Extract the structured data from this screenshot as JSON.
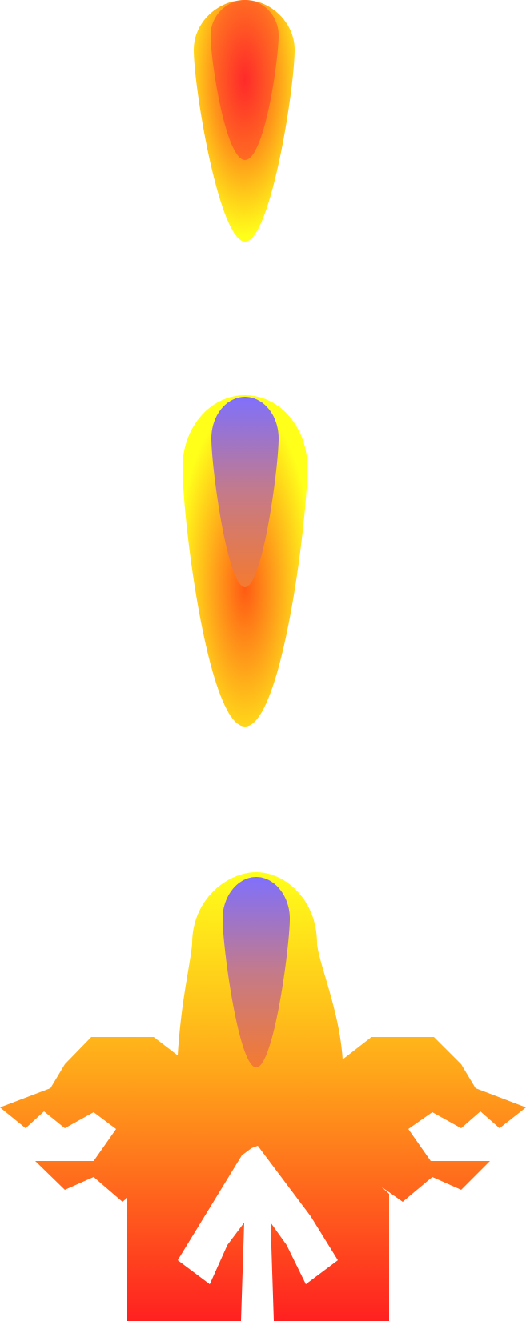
{
  "sprite_sheet": {
    "sprites": [
      {
        "name": "flame-small",
        "outer_flame": "radial",
        "core": "hot-core"
      },
      {
        "name": "flame-large",
        "outer_flame": "radial",
        "core": "cool-core"
      },
      {
        "name": "spaceship",
        "hull": "vertical-gradient",
        "canopy": "cool-core"
      }
    ]
  },
  "colors": {
    "background": "#ffffff",
    "yellow": "#ffff1a",
    "orange": "#ff9a1a",
    "red": "#ff2a1a",
    "blue_violet": "#8070f5",
    "core_orange": "#ef7a3a"
  },
  "icons": {
    "flame_small": "flame-small-icon",
    "flame_large": "flame-large-icon",
    "ship": "spaceship-icon"
  }
}
